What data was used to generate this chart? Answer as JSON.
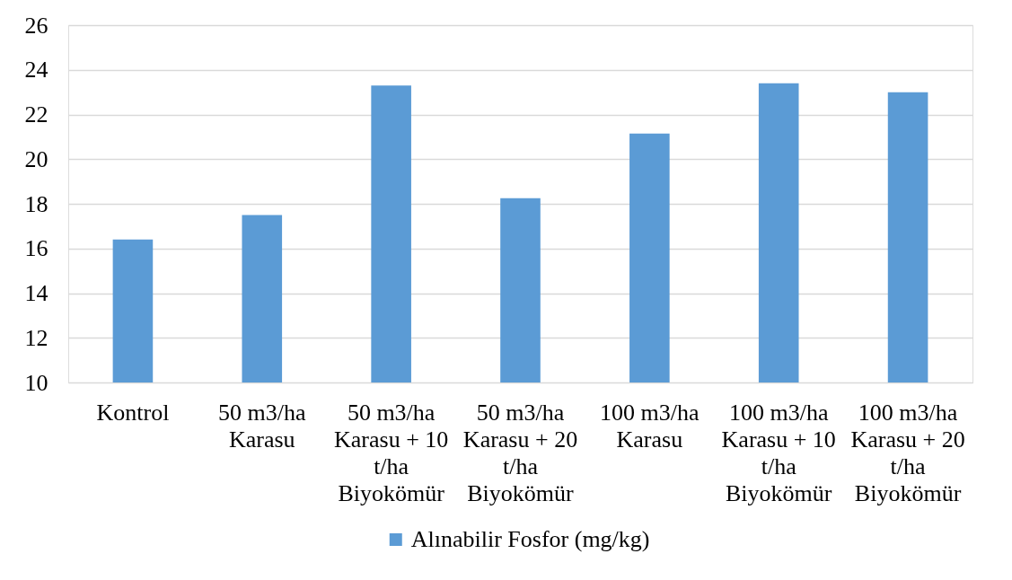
{
  "chart_data": {
    "type": "bar",
    "categories": [
      "Kontrol",
      "50 m3/ha Karasu",
      "50 m3/ha Karasu + 10 t/ha Biyokömür",
      "50 m3/ha Karasu + 20 t/ha Biyokömür",
      "100 m3/ha Karasu",
      "100 m3/ha Karasu + 10 t/ha Biyokömür",
      "100 m3/ha Karasu + 20 t/ha Biyokömür"
    ],
    "series": [
      {
        "name": "Alınabilir Fosfor (mg/kg)",
        "color": "#5b9bd5",
        "values": [
          16.4,
          17.5,
          23.3,
          18.25,
          21.15,
          23.4,
          23.0
        ]
      }
    ],
    "ylim": [
      10,
      26
    ],
    "yticks": [
      10,
      12,
      14,
      16,
      18,
      20,
      22,
      24,
      26
    ],
    "grid": "y",
    "legend": "bottom"
  }
}
